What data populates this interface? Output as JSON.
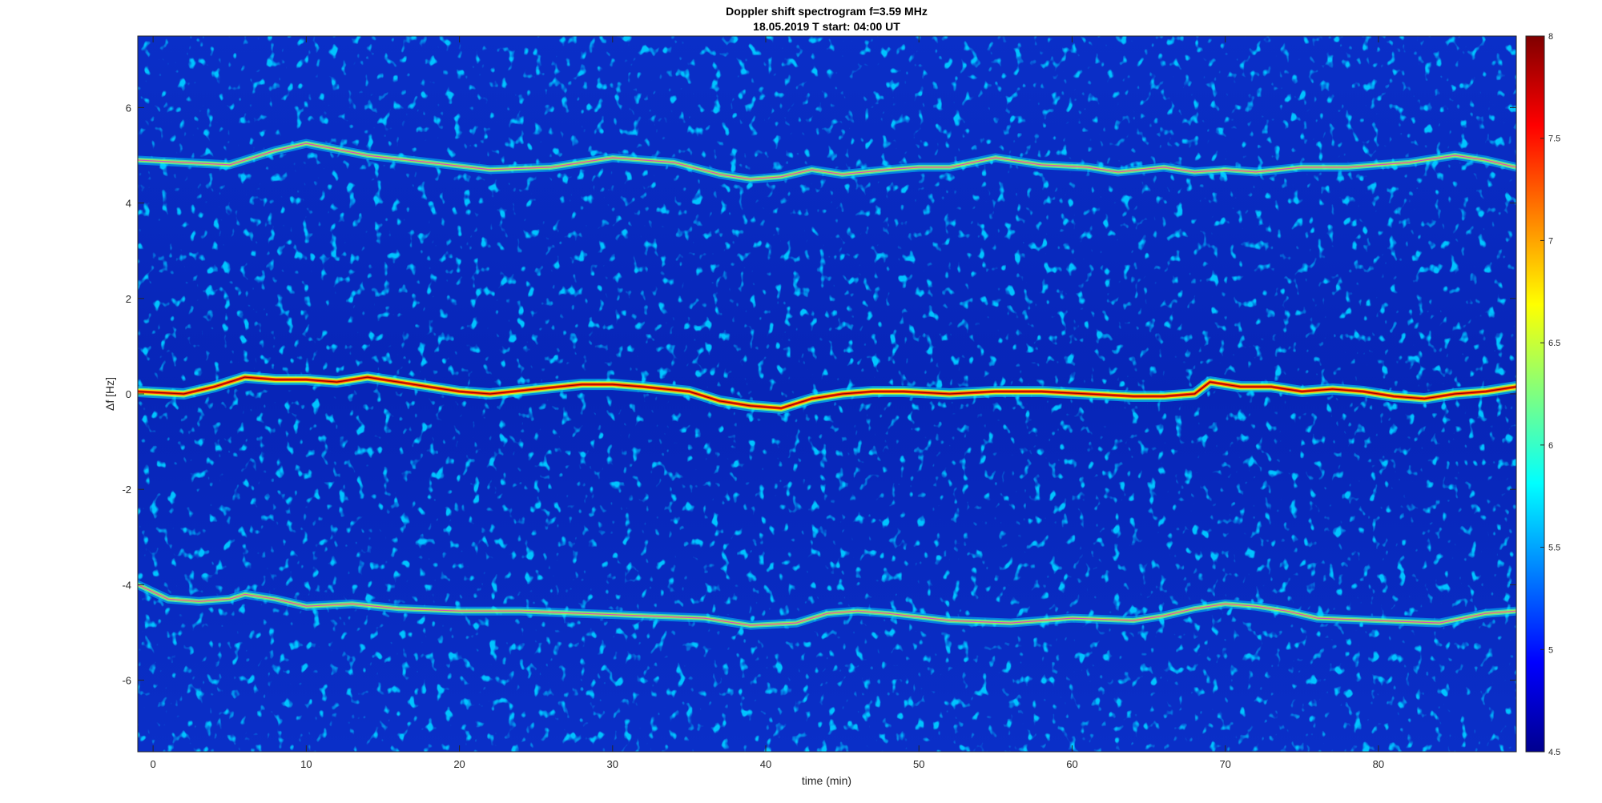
{
  "chart_data": {
    "type": "heatmap",
    "title": "Doppler shift spectrogram f=3.59 MHz",
    "subtitle": "18.05.2019   T start: 04:00 UT",
    "xlabel": "time (min)",
    "ylabel": "Δf [Hz]",
    "xlim": [
      -1,
      89
    ],
    "ylim": [
      -7.5,
      7.5
    ],
    "x_ticks": [
      0,
      10,
      20,
      30,
      40,
      50,
      60,
      70,
      80
    ],
    "x_tick_labels": [
      "0",
      "10",
      "20",
      "30",
      "40",
      "50",
      "60",
      "70",
      "80"
    ],
    "y_ticks": [
      -6,
      -4,
      -2,
      0,
      2,
      4,
      6
    ],
    "y_tick_labels": [
      "-6",
      "-4",
      "-2",
      "0",
      "2",
      "4",
      "6"
    ],
    "colorbar": {
      "range": [
        4.5,
        8
      ],
      "ticks": [
        4.5,
        5,
        5.5,
        6,
        6.5,
        7,
        7.5,
        8
      ],
      "tick_labels": [
        "4.5",
        "5",
        "5.5",
        "6",
        "6.5",
        "7",
        "7.5",
        "8"
      ],
      "colormap": "jet"
    },
    "grid": false,
    "series": [
      {
        "x": [
          -1,
          2,
          5,
          7,
          8,
          10,
          14,
          18,
          22,
          26,
          30,
          34,
          37,
          39,
          41,
          43,
          45,
          48,
          50,
          52,
          55,
          58,
          61,
          63,
          66,
          68,
          70,
          72,
          75,
          78,
          80,
          82,
          85,
          87,
          89
        ],
        "y": [
          4.9,
          4.85,
          4.8,
          5.0,
          5.1,
          5.25,
          5.0,
          4.85,
          4.7,
          4.75,
          4.95,
          4.85,
          4.6,
          4.5,
          4.55,
          4.7,
          4.6,
          4.7,
          4.75,
          4.75,
          4.95,
          4.8,
          4.75,
          4.65,
          4.75,
          4.65,
          4.7,
          4.65,
          4.75,
          4.75,
          4.8,
          4.85,
          5.0,
          4.9,
          4.75
        ]
      },
      {
        "x": [
          -1,
          2,
          4,
          6,
          8,
          10,
          12,
          14,
          16,
          18,
          20,
          22,
          25,
          28,
          30,
          32,
          35,
          37,
          39,
          41,
          43,
          45,
          47,
          49,
          52,
          55,
          58,
          61,
          64,
          66,
          68,
          69,
          71,
          73,
          75,
          77,
          79,
          81,
          83,
          85,
          87,
          89
        ],
        "y": [
          0.05,
          0.0,
          0.15,
          0.35,
          0.3,
          0.3,
          0.25,
          0.35,
          0.25,
          0.15,
          0.05,
          0.0,
          0.1,
          0.2,
          0.2,
          0.15,
          0.05,
          -0.15,
          -0.25,
          -0.3,
          -0.1,
          0.0,
          0.05,
          0.05,
          0.0,
          0.05,
          0.05,
          0.0,
          -0.05,
          -0.05,
          0.0,
          0.25,
          0.15,
          0.15,
          0.05,
          0.1,
          0.05,
          -0.05,
          -0.1,
          0.0,
          0.05,
          0.15
        ]
      },
      {
        "x": [
          -1,
          1,
          3,
          5,
          6,
          8,
          10,
          13,
          16,
          20,
          24,
          28,
          32,
          36,
          39,
          42,
          44,
          46,
          48,
          52,
          56,
          60,
          64,
          66,
          68,
          70,
          72,
          74,
          76,
          80,
          84,
          87,
          89
        ],
        "y": [
          -4.0,
          -4.3,
          -4.35,
          -4.3,
          -4.2,
          -4.3,
          -4.45,
          -4.4,
          -4.5,
          -4.55,
          -4.55,
          -4.6,
          -4.65,
          -4.7,
          -4.85,
          -4.8,
          -4.6,
          -4.55,
          -4.6,
          -4.75,
          -4.8,
          -4.7,
          -4.75,
          -4.65,
          -4.5,
          -4.4,
          -4.45,
          -4.55,
          -4.7,
          -4.75,
          -4.8,
          -4.6,
          -4.55
        ]
      }
    ]
  }
}
